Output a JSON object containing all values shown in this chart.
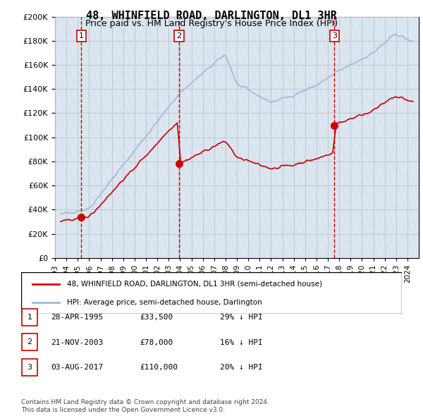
{
  "title": "48, WHINFIELD ROAD, DARLINGTON, DL1 3HR",
  "subtitle": "Price paid vs. HM Land Registry's House Price Index (HPI)",
  "ylabel_ticks": [
    "£0",
    "£20K",
    "£40K",
    "£60K",
    "£80K",
    "£100K",
    "£120K",
    "£140K",
    "£160K",
    "£180K",
    "£200K"
  ],
  "ylim": [
    0,
    200000
  ],
  "xlim_start": 1993.0,
  "xlim_end": 2025.0,
  "sale_dates": [
    1995.32,
    2003.9,
    2017.58
  ],
  "sale_prices": [
    33500,
    78000,
    110000
  ],
  "sale_labels": [
    "1",
    "2",
    "3"
  ],
  "legend_entry1": "48, WHINFIELD ROAD, DARLINGTON, DL1 3HR (semi-detached house)",
  "legend_entry2": "HPI: Average price, semi-detached house, Darlington",
  "table_rows": [
    [
      "1",
      "28-APR-1995",
      "£33,500",
      "29% ↓ HPI"
    ],
    [
      "2",
      "21-NOV-2003",
      "£78,000",
      "16% ↓ HPI"
    ],
    [
      "3",
      "03-AUG-2017",
      "£110,000",
      "20% ↓ HPI"
    ]
  ],
  "footnote1": "Contains HM Land Registry data © Crown copyright and database right 2024.",
  "footnote2": "This data is licensed under the Open Government Licence v3.0.",
  "hpi_color": "#a0b8d8",
  "price_color": "#cc0000",
  "sale_dot_color": "#cc0000",
  "vline_color": "#cc0000",
  "background_hatch": "#e8eef4",
  "grid_color": "#c0c8d0"
}
